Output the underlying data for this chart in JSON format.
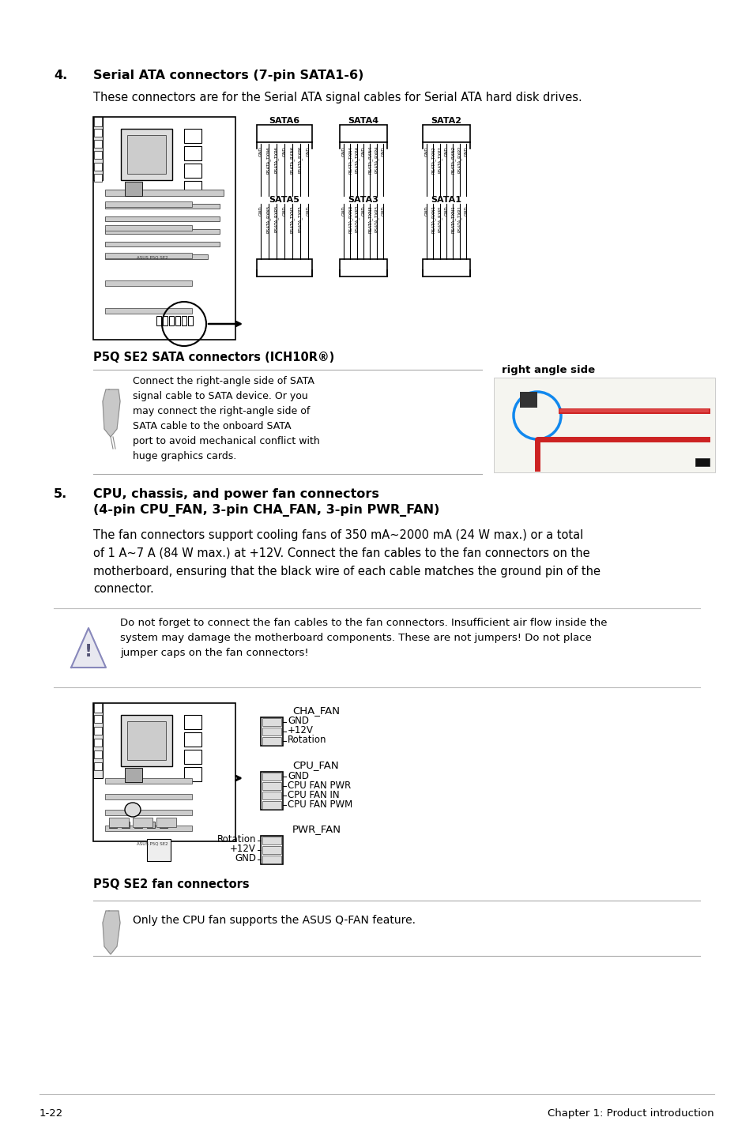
{
  "bg_color": "#ffffff",
  "footer_left": "1-22",
  "footer_right": "Chapter 1: Product introduction",
  "section4_number": "4.",
  "section4_title": "Serial ATA connectors (7-pin SATA1-6)",
  "section4_body": "These connectors are for the Serial ATA signal cables for Serial ATA hard disk drives.",
  "section5_number": "5.",
  "section5_title_line1": "CPU, chassis, and power fan connectors",
  "section5_title_line2": "(4-pin CPU_FAN, 3-pin CHA_FAN, 3-pin PWR_FAN)",
  "section5_body": "The fan connectors support cooling fans of 350 mA~2000 mA (24 W max.) or a total\nof 1 A~7 A (84 W max.) at +12V. Connect the fan cables to the fan connectors on the\nmotherboard, ensuring that the black wire of each cable matches the ground pin of the\nconnector.",
  "warning_text": "Do not forget to connect the fan cables to the fan connectors. Insufficient air flow inside the\nsystem may damage the motherboard components. These are not jumpers! Do not place\njumper caps on the fan connectors!",
  "note_sata_text": "Connect the right-angle side of SATA\nsignal cable to SATA device. Or you\nmay connect the right-angle side of\nSATA cable to the onboard SATA\nport to avoid mechanical conflict with\nhuge graphics cards.",
  "note_fan_text": "Only the CPU fan supports the ASUS Q-FAN feature.",
  "caption_sata": "P5Q SE2 SATA connectors (ICH10R®)",
  "caption_fan": "P5Q SE2 fan connectors",
  "right_angle_side": "right angle side",
  "sata_labels_top": [
    "SATA6",
    "SATA4",
    "SATA2"
  ],
  "sata_labels_bot": [
    "SATA5",
    "SATA3",
    "SATA1"
  ],
  "sata_top_pins": [
    [
      "GND",
      "RSATA_TXN6",
      "RSATA_TXP6",
      "GND",
      "RSATA_RXN6",
      "RSATA_RXP6",
      "GND"
    ],
    [
      "GND",
      "RSATA_TXN4",
      "RSATA_TXP4",
      "GND",
      "RSATA_RXN4",
      "RSATA_RXP4",
      "GND"
    ],
    [
      "GND",
      "RSATA_TXN2",
      "RSATA_TXP2",
      "GND",
      "RSATA_RXN2",
      "RSATA_RXP2",
      "GND"
    ]
  ],
  "sata_bot_pins": [
    [
      "GND",
      "RSATA_RXN5",
      "RSATA_RXP5",
      "GND",
      "RSATA_TXN5",
      "RSATA_TXP5",
      "GND"
    ],
    [
      "GND",
      "RSATA_RXN3",
      "RSATA_RXP3",
      "GND",
      "RSATA_TXN3",
      "RSATA_TXP3",
      "GND"
    ],
    [
      "GND",
      "RSATA_RXN1",
      "RSATA_RXP1",
      "GND",
      "RSATA_TXN1",
      "RSATA_TXP1",
      "GND"
    ]
  ],
  "cha_fan_label": "CHA_FAN",
  "cha_fan_pins": [
    "GND",
    "+12V",
    "Rotation"
  ],
  "cpu_fan_label": "CPU_FAN",
  "cpu_fan_pins": [
    "GND",
    "CPU FAN PWR",
    "CPU FAN IN",
    "CPU FAN PWM"
  ],
  "pwr_fan_label": "PWR_FAN",
  "pwr_fan_pins": [
    "Rotation",
    "+12V",
    "GND"
  ]
}
